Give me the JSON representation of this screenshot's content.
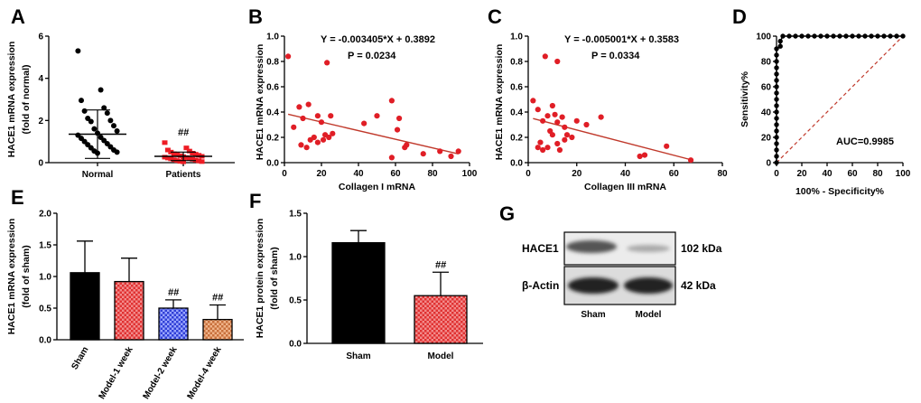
{
  "chart_data": [
    {
      "panel": "A",
      "type": "scatter",
      "ylabel": "HACE1 mRNA expression",
      "ylabel2": "(fold of normal)",
      "ylim": [
        0,
        6
      ],
      "yticks": [
        0,
        2,
        4,
        6
      ],
      "categories": [
        "Normal",
        "Patients"
      ],
      "groups": [
        {
          "name": "Normal",
          "color": "#000000",
          "mean": 1.35,
          "sd": 1.15,
          "values": [
            5.3,
            3.45,
            2.95,
            2.6,
            2.45,
            2.35,
            2.1,
            2.0,
            1.95,
            1.75,
            1.6,
            1.5,
            1.4,
            1.3,
            1.2,
            1.15,
            1.05,
            1.0,
            0.9,
            0.85,
            0.75,
            0.7,
            0.6,
            0.55,
            0.5,
            0.45
          ]
        },
        {
          "name": "Patients",
          "color": "#ee1c24",
          "mean": 0.3,
          "sd": 0.2,
          "values": [
            0.95,
            0.7,
            0.6,
            0.55,
            0.5,
            0.45,
            0.42,
            0.4,
            0.38,
            0.35,
            0.33,
            0.3,
            0.28,
            0.26,
            0.24,
            0.22,
            0.2,
            0.18,
            0.16,
            0.14,
            0.12,
            0.1,
            0.08,
            0.06,
            0.05,
            0.04
          ]
        }
      ],
      "annotation": "##"
    },
    {
      "panel": "B",
      "type": "scatter",
      "equation": "Y = -0.003405*X + 0.3892",
      "pvalue": "P = 0.0234",
      "xlabel": "Collagen I mRNA",
      "ylabel": "HACE1 mRNA expression",
      "xlim": [
        0,
        100
      ],
      "xticks": [
        0,
        20,
        40,
        60,
        80,
        100
      ],
      "ylim": [
        0,
        1.0
      ],
      "yticks": [
        "0.0",
        "0.2",
        "0.4",
        "0.6",
        "0.8",
        "1.0"
      ],
      "slope": -0.003405,
      "intercept": 0.3892,
      "points": [
        [
          2,
          0.84
        ],
        [
          23,
          0.79
        ],
        [
          8,
          0.44
        ],
        [
          13,
          0.46
        ],
        [
          10,
          0.35
        ],
        [
          5,
          0.28
        ],
        [
          18,
          0.37
        ],
        [
          20,
          0.32
        ],
        [
          25,
          0.37
        ],
        [
          22,
          0.22
        ],
        [
          16,
          0.2
        ],
        [
          18,
          0.16
        ],
        [
          21,
          0.18
        ],
        [
          24,
          0.2
        ],
        [
          26,
          0.23
        ],
        [
          9,
          0.14
        ],
        [
          12,
          0.12
        ],
        [
          14,
          0.18
        ],
        [
          43,
          0.31
        ],
        [
          50,
          0.37
        ],
        [
          58,
          0.49
        ],
        [
          61,
          0.26
        ],
        [
          62,
          0.35
        ],
        [
          65,
          0.12
        ],
        [
          66,
          0.14
        ],
        [
          58,
          0.04
        ],
        [
          75,
          0.07
        ],
        [
          84,
          0.09
        ],
        [
          90,
          0.05
        ],
        [
          94,
          0.09
        ]
      ]
    },
    {
      "panel": "C",
      "type": "scatter",
      "equation": "Y = -0.005001*X + 0.3583",
      "pvalue": "P = 0.0334",
      "xlabel": "Collagen III mRNA",
      "ylabel": "HACE1 mRNA expression",
      "xlim": [
        0,
        80
      ],
      "xticks": [
        0,
        20,
        40,
        60,
        80
      ],
      "ylim": [
        0,
        1.0
      ],
      "yticks": [
        "0.0",
        "0.2",
        "0.4",
        "0.6",
        "0.8",
        "1.0"
      ],
      "slope": -0.005001,
      "intercept": 0.3583,
      "points": [
        [
          7,
          0.84
        ],
        [
          12,
          0.8
        ],
        [
          2,
          0.49
        ],
        [
          10,
          0.45
        ],
        [
          4,
          0.42
        ],
        [
          6,
          0.33
        ],
        [
          8,
          0.37
        ],
        [
          12,
          0.32
        ],
        [
          11,
          0.38
        ],
        [
          14,
          0.36
        ],
        [
          9,
          0.25
        ],
        [
          10,
          0.22
        ],
        [
          12,
          0.15
        ],
        [
          15,
          0.18
        ],
        [
          18,
          0.2
        ],
        [
          16,
          0.22
        ],
        [
          5,
          0.16
        ],
        [
          4,
          0.12
        ],
        [
          6,
          0.1
        ],
        [
          8,
          0.12
        ],
        [
          20,
          0.33
        ],
        [
          24,
          0.3
        ],
        [
          30,
          0.36
        ],
        [
          15,
          0.28
        ],
        [
          13,
          0.1
        ],
        [
          46,
          0.05
        ],
        [
          48,
          0.06
        ],
        [
          57,
          0.13
        ],
        [
          67,
          0.02
        ]
      ]
    },
    {
      "panel": "D",
      "type": "line",
      "xlabel": "100% - Specificity%",
      "ylabel": "Sensitivity%",
      "xlim": [
        0,
        100
      ],
      "xticks": [
        0,
        20,
        40,
        60,
        80,
        100
      ],
      "ylim": [
        0,
        100
      ],
      "yticks": [
        0,
        20,
        40,
        60,
        80,
        100
      ],
      "annotation": "AUC=0.9985",
      "roc_points": [
        [
          0,
          0
        ],
        [
          0,
          5
        ],
        [
          0,
          10
        ],
        [
          0,
          15
        ],
        [
          0,
          20
        ],
        [
          0,
          25
        ],
        [
          0,
          30
        ],
        [
          0,
          35
        ],
        [
          0,
          40
        ],
        [
          0,
          45
        ],
        [
          0,
          50
        ],
        [
          0,
          55
        ],
        [
          0,
          60
        ],
        [
          0,
          65
        ],
        [
          0,
          70
        ],
        [
          0,
          75
        ],
        [
          0,
          80
        ],
        [
          0,
          85
        ],
        [
          0,
          90
        ],
        [
          3,
          92
        ],
        [
          3,
          96
        ],
        [
          5,
          100
        ],
        [
          10,
          100
        ],
        [
          15,
          100
        ],
        [
          20,
          100
        ],
        [
          25,
          100
        ],
        [
          30,
          100
        ],
        [
          35,
          100
        ],
        [
          40,
          100
        ],
        [
          45,
          100
        ],
        [
          50,
          100
        ],
        [
          55,
          100
        ],
        [
          60,
          100
        ],
        [
          65,
          100
        ],
        [
          70,
          100
        ],
        [
          75,
          100
        ],
        [
          80,
          100
        ],
        [
          85,
          100
        ],
        [
          90,
          100
        ],
        [
          95,
          100
        ],
        [
          100,
          100
        ]
      ]
    },
    {
      "panel": "E",
      "type": "bar",
      "ylabel": "HACE1 mRNA expression",
      "ylabel2": "(fold of sham)",
      "ylim": [
        0,
        2.0
      ],
      "yticks": [
        "0.0",
        "0.5",
        "1.0",
        "1.5",
        "2.0"
      ],
      "categories": [
        "Sham",
        "Model-1 week",
        "Model-2 week",
        "Model-4 week"
      ],
      "values": [
        1.06,
        0.92,
        0.5,
        0.32
      ],
      "errors": [
        0.5,
        0.37,
        0.13,
        0.23
      ],
      "fills": [
        "solid",
        "red-check",
        "blue-check",
        "orange-check"
      ],
      "annotations": [
        "",
        "",
        "##",
        "##"
      ]
    },
    {
      "panel": "F",
      "type": "bar",
      "ylabel": "HACE1 protein expression",
      "ylabel2": "(fold of sham)",
      "ylim": [
        0,
        1.5
      ],
      "yticks": [
        "0.0",
        "0.5",
        "1.0",
        "1.5"
      ],
      "categories": [
        "Sham",
        "Model"
      ],
      "values": [
        1.16,
        0.55
      ],
      "errors": [
        0.14,
        0.27
      ],
      "fills": [
        "solid",
        "red-check"
      ],
      "annotations": [
        "",
        "##"
      ]
    }
  ],
  "panel_labels": [
    "A",
    "B",
    "C",
    "D",
    "E",
    "F",
    "G"
  ],
  "western_blot": {
    "panel": "G",
    "bands": [
      {
        "name": "HACE1",
        "size": "102 kDa"
      },
      {
        "name": "β-Actin",
        "size": "42 kDa"
      }
    ],
    "lanes": [
      "Sham",
      "Model"
    ]
  }
}
